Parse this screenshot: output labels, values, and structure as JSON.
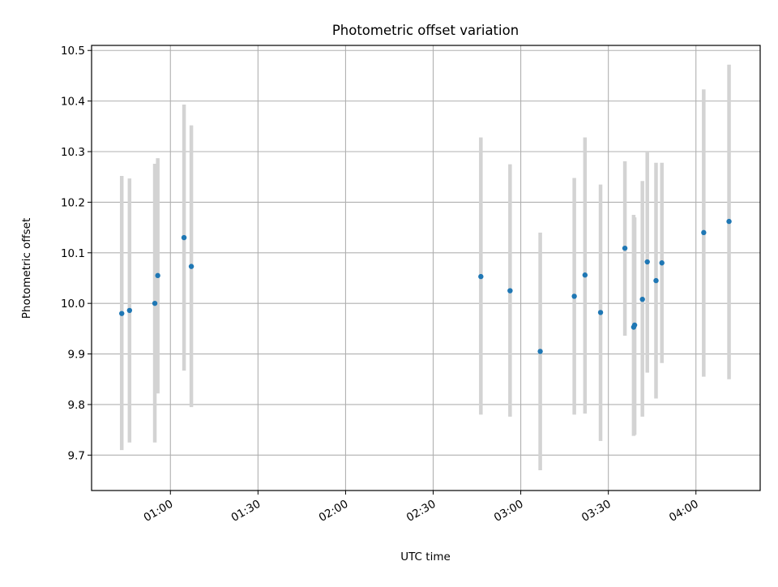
{
  "chart_data": {
    "type": "scatter",
    "title": "Photometric offset variation",
    "xlabel": "UTC time",
    "ylabel": "Photometric offset",
    "xlim": [
      "00:33:00",
      "04:22:00"
    ],
    "ylim": [
      9.63,
      10.51
    ],
    "xticks": [
      "01:00",
      "01:30",
      "02:00",
      "02:30",
      "03:00",
      "03:30",
      "04:00"
    ],
    "yticks": [
      "9.7",
      "9.8",
      "9.9",
      "10.0",
      "10.1",
      "10.2",
      "10.3",
      "10.4",
      "10.5"
    ],
    "grid": true,
    "legend": false,
    "colors": {
      "point": "#1f77b4",
      "errorbar": "#d3d3d3",
      "grid": "#b0b0b0"
    },
    "series": [
      {
        "points": [
          {
            "x": "00:43:20",
            "y": 9.98,
            "ylow": 9.71,
            "yhigh": 10.252
          },
          {
            "x": "00:46:00",
            "y": 9.986,
            "ylow": 9.725,
            "yhigh": 10.247
          },
          {
            "x": "00:54:40",
            "y": 10.0,
            "ylow": 9.725,
            "yhigh": 10.276
          },
          {
            "x": "00:55:40",
            "y": 10.055,
            "ylow": 9.822,
            "yhigh": 10.287
          },
          {
            "x": "01:04:40",
            "y": 10.13,
            "ylow": 9.867,
            "yhigh": 10.393
          },
          {
            "x": "01:07:10",
            "y": 10.073,
            "ylow": 9.795,
            "yhigh": 10.352
          },
          {
            "x": "02:46:20",
            "y": 10.053,
            "ylow": 9.78,
            "yhigh": 10.328
          },
          {
            "x": "02:56:20",
            "y": 10.025,
            "ylow": 9.776,
            "yhigh": 10.275
          },
          {
            "x": "03:06:40",
            "y": 9.905,
            "ylow": 9.67,
            "yhigh": 10.14
          },
          {
            "x": "03:18:20",
            "y": 10.014,
            "ylow": 9.78,
            "yhigh": 10.248
          },
          {
            "x": "03:22:00",
            "y": 10.056,
            "ylow": 9.782,
            "yhigh": 10.328
          },
          {
            "x": "03:27:20",
            "y": 9.982,
            "ylow": 9.728,
            "yhigh": 10.235
          },
          {
            "x": "03:35:40",
            "y": 10.109,
            "ylow": 9.936,
            "yhigh": 10.281
          },
          {
            "x": "03:38:40",
            "y": 9.953,
            "ylow": 9.738,
            "yhigh": 10.175
          },
          {
            "x": "03:39:00",
            "y": 9.957,
            "ylow": 9.74,
            "yhigh": 10.17
          },
          {
            "x": "03:41:40",
            "y": 10.008,
            "ylow": 9.776,
            "yhigh": 10.242
          },
          {
            "x": "03:43:20",
            "y": 10.082,
            "ylow": 9.863,
            "yhigh": 10.3
          },
          {
            "x": "03:46:20",
            "y": 10.045,
            "ylow": 9.812,
            "yhigh": 10.278
          },
          {
            "x": "03:48:20",
            "y": 10.08,
            "ylow": 9.882,
            "yhigh": 10.278
          },
          {
            "x": "04:02:40",
            "y": 10.14,
            "ylow": 9.855,
            "yhigh": 10.423
          },
          {
            "x": "04:11:20",
            "y": 10.162,
            "ylow": 9.85,
            "yhigh": 10.472
          }
        ]
      }
    ]
  }
}
